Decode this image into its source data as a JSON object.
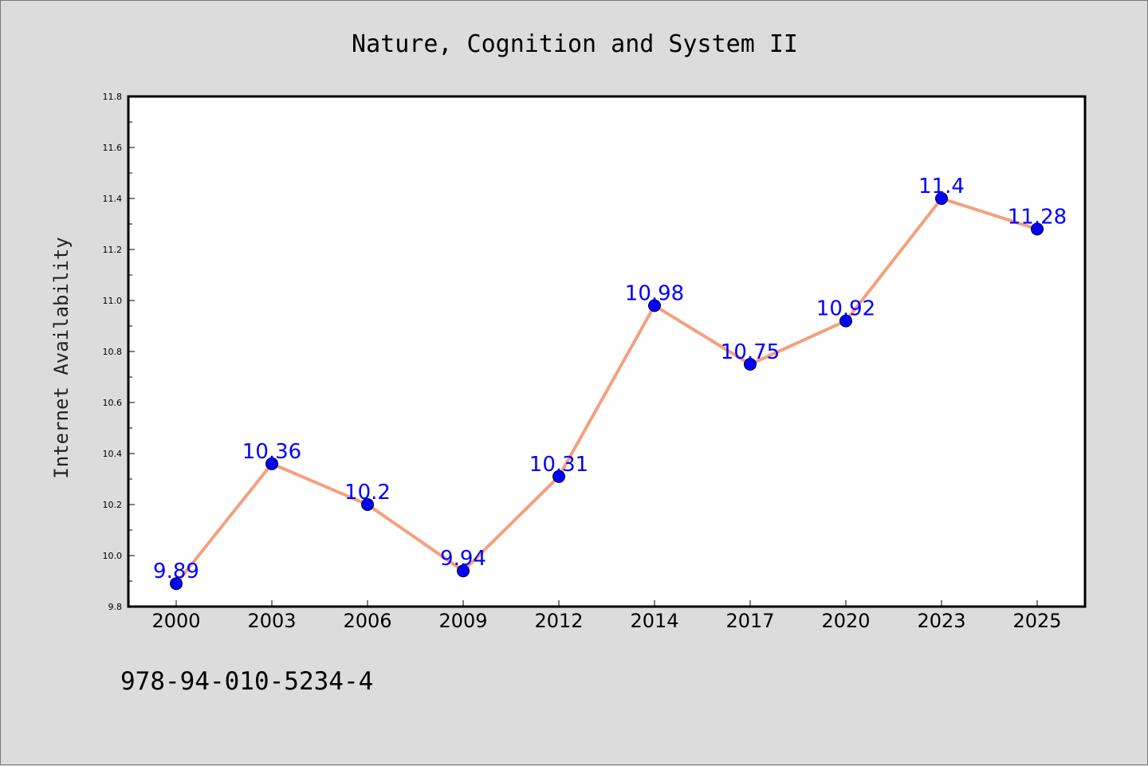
{
  "chart_data": {
    "type": "line",
    "title": "Nature, Cognition and System II",
    "xlabel": "",
    "ylabel": "Internet Availability",
    "categories": [
      "2000",
      "2003",
      "2006",
      "2009",
      "2012",
      "2014",
      "2017",
      "2020",
      "2023",
      "2025"
    ],
    "series": [
      {
        "values": [
          9.89,
          10.36,
          10.2,
          9.94,
          10.31,
          10.98,
          10.75,
          10.92,
          11.4,
          11.28
        ],
        "labels": [
          "9.89",
          "10.36",
          "10.2",
          "9.94",
          "10.31",
          "10.98",
          "10.75",
          "10.92",
          "11.4",
          "11.28"
        ],
        "line_color": "#f4a07e",
        "marker_color": "#0000ff",
        "label_color": "#0000ff"
      }
    ],
    "ylim": [
      9.8,
      11.8
    ],
    "yticks": [
      "9.8",
      "10.0",
      "10.2",
      "10.4",
      "10.6",
      "10.8",
      "11.0",
      "11.2",
      "11.4",
      "11.6",
      "11.8"
    ],
    "grid": false,
    "legend": "none"
  },
  "footer": {
    "isbn": "978-94-010-5234-4"
  }
}
